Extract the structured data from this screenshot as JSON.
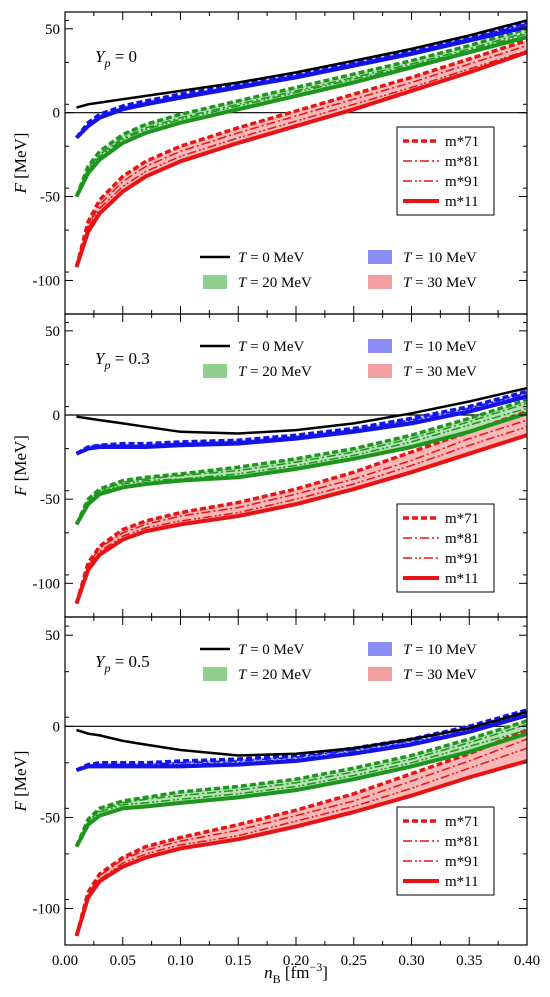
{
  "chart_data": {
    "type": "line",
    "xlabel_var": "n",
    "xlabel_sub": "B",
    "xlabel_unit_pre": " [fm",
    "xlabel_unit_exp": "−3",
    "xlabel_unit_post": "]",
    "ylabel_var": "F",
    "ylabel_unit": " [MeV]",
    "xlim": [
      0.0,
      0.4
    ],
    "xticks": [
      "0.00",
      "0.05",
      "0.10",
      "0.15",
      "0.20",
      "0.25",
      "0.30",
      "0.35",
      "0.40"
    ],
    "temp_legend": [
      {
        "name": "T = 0 MeV",
        "var": "T",
        "rest": " = 0 MeV",
        "color": "#000000",
        "kind": "line"
      },
      {
        "name": "T = 10 MeV",
        "var": "T",
        "rest": " = 10 MeV",
        "color": "#8c8cf5",
        "kind": "patch"
      },
      {
        "name": "T = 20 MeV",
        "var": "T",
        "rest": " = 20 MeV",
        "color": "#8fd08f",
        "kind": "patch"
      },
      {
        "name": "T = 30 MeV",
        "var": "T",
        "rest": " = 30 MeV",
        "color": "#f4a0a0",
        "kind": "patch"
      }
    ],
    "mass_legend": [
      {
        "name": "m*71",
        "dash": "6,3",
        "width": 3.5
      },
      {
        "name": "m*81",
        "dash": "9,3,2,3",
        "width": 1.5
      },
      {
        "name": "m*91",
        "dash": "9,3,2,2,2,3",
        "width": 1.5
      },
      {
        "name": "m*11",
        "dash": "",
        "width": 4
      }
    ],
    "colors": {
      "T0": "#000000",
      "T10": "#1414e6",
      "T20": "#1e961e",
      "T30": "#e61414"
    },
    "panels": [
      {
        "label_var": "Y",
        "label_sub": "p",
        "label_val": " = 0",
        "ylim": [
          -120,
          60
        ],
        "yticks": [
          "50",
          "0",
          "-50",
          "-100"
        ],
        "ytick_values": [
          50,
          0,
          -50,
          -100
        ],
        "x": [
          0.01,
          0.02,
          0.03,
          0.05,
          0.07,
          0.1,
          0.15,
          0.2,
          0.25,
          0.3,
          0.35,
          0.4
        ],
        "T0": [
          3,
          5,
          6,
          8,
          10,
          13,
          18,
          24,
          31,
          38,
          46,
          55
        ],
        "T10": {
          "m71": [
            -15,
            -6,
            -1,
            4,
            7,
            11,
            17,
            23,
            30,
            37,
            45,
            54
          ],
          "m81": [
            -15,
            -7,
            -2,
            3,
            6,
            10,
            16,
            22,
            29,
            36,
            44,
            53
          ],
          "m91": [
            -15,
            -7,
            -2,
            3,
            6,
            10,
            16,
            22,
            29,
            36,
            44,
            52
          ],
          "m11": [
            -15,
            -8,
            -3,
            2,
            5,
            9,
            15,
            21,
            28,
            35,
            43,
            51
          ]
        },
        "T20": {
          "m71": [
            -50,
            -32,
            -23,
            -13,
            -7,
            -1,
            7,
            15,
            23,
            31,
            40,
            50
          ],
          "m81": [
            -50,
            -33,
            -25,
            -15,
            -9,
            -3,
            5,
            13,
            21,
            29,
            38,
            48
          ],
          "m91": [
            -50,
            -34,
            -26,
            -16,
            -10,
            -4,
            4,
            12,
            20,
            28,
            37,
            47
          ],
          "m11": [
            -50,
            -36,
            -28,
            -18,
            -12,
            -6,
            2,
            10,
            18,
            27,
            36,
            45
          ]
        },
        "T30": {
          "m71": [
            -92,
            -65,
            -52,
            -38,
            -29,
            -20,
            -9,
            1,
            11,
            21,
            32,
            43
          ],
          "m81": [
            -92,
            -67,
            -55,
            -41,
            -32,
            -23,
            -12,
            -2,
            8,
            18,
            29,
            40
          ],
          "m91": [
            -92,
            -69,
            -57,
            -44,
            -35,
            -26,
            -15,
            -5,
            5,
            15,
            26,
            37
          ],
          "m11": [
            -92,
            -71,
            -60,
            -47,
            -38,
            -29,
            -18,
            -8,
            2,
            13,
            24,
            36
          ]
        },
        "temp_legend_pos": "bottom-right",
        "mass_legend_pos": "top-right"
      },
      {
        "label_var": "Y",
        "label_sub": "p",
        "label_val": " = 0.3",
        "ylim": [
          -120,
          60
        ],
        "yticks": [
          "50",
          "0",
          "-50",
          "-100"
        ],
        "ytick_values": [
          50,
          0,
          -50,
          -100
        ],
        "x": [
          0.01,
          0.02,
          0.03,
          0.05,
          0.07,
          0.1,
          0.15,
          0.2,
          0.25,
          0.3,
          0.35,
          0.4
        ],
        "T0": [
          -1,
          -2,
          -3,
          -5,
          -7,
          -10,
          -11,
          -9,
          -5,
          1,
          8,
          16
        ],
        "T10": {
          "m71": [
            -23,
            -19,
            -18,
            -17,
            -17,
            -16,
            -15,
            -12,
            -8,
            -2,
            5,
            14
          ],
          "m81": [
            -23,
            -19,
            -18,
            -18,
            -18,
            -17,
            -16,
            -13,
            -9,
            -3,
            4,
            13
          ],
          "m91": [
            -23,
            -19,
            -18,
            -18,
            -18,
            -17,
            -16,
            -13,
            -9,
            -4,
            3,
            12
          ],
          "m11": [
            -23,
            -20,
            -19,
            -19,
            -19,
            -18,
            -17,
            -14,
            -10,
            -5,
            2,
            11
          ]
        },
        "T20": {
          "m71": [
            -65,
            -50,
            -44,
            -39,
            -37,
            -35,
            -31,
            -26,
            -20,
            -12,
            -2,
            9
          ],
          "m81": [
            -65,
            -51,
            -45,
            -40,
            -38,
            -36,
            -33,
            -28,
            -22,
            -14,
            -4,
            7
          ],
          "m91": [
            -65,
            -52,
            -46,
            -41,
            -39,
            -38,
            -35,
            -30,
            -24,
            -16,
            -6,
            4
          ],
          "m11": [
            -65,
            -53,
            -47,
            -43,
            -41,
            -39,
            -37,
            -32,
            -26,
            -19,
            -10,
            1
          ]
        },
        "T30": {
          "m71": [
            -112,
            -88,
            -78,
            -68,
            -63,
            -58,
            -52,
            -44,
            -34,
            -22,
            -10,
            2
          ],
          "m81": [
            -112,
            -89,
            -79,
            -70,
            -65,
            -60,
            -55,
            -47,
            -38,
            -27,
            -14,
            -3
          ],
          "m91": [
            -112,
            -90,
            -81,
            -72,
            -67,
            -63,
            -58,
            -50,
            -41,
            -30,
            -18,
            -7
          ],
          "m11": [
            -112,
            -92,
            -83,
            -74,
            -69,
            -65,
            -60,
            -53,
            -44,
            -34,
            -23,
            -12
          ]
        },
        "temp_legend_pos": "top-right",
        "mass_legend_pos": "bottom-right"
      },
      {
        "label_var": "Y",
        "label_sub": "p",
        "label_val": " = 0.5",
        "ylim": [
          -120,
          60
        ],
        "yticks": [
          "50",
          "0",
          "-50",
          "-100"
        ],
        "ytick_values": [
          50,
          0,
          -50,
          -100
        ],
        "x": [
          0.01,
          0.02,
          0.03,
          0.05,
          0.07,
          0.1,
          0.15,
          0.2,
          0.25,
          0.3,
          0.35,
          0.4
        ],
        "T0": [
          -2,
          -4,
          -5,
          -8,
          -10,
          -13,
          -16,
          -15,
          -12,
          -7,
          -1,
          8
        ],
        "T10": {
          "m71": [
            -24,
            -21,
            -20,
            -20,
            -20,
            -19,
            -18,
            -16,
            -12,
            -7,
            0,
            9
          ],
          "m81": [
            -24,
            -21,
            -21,
            -21,
            -21,
            -20,
            -19,
            -17,
            -13,
            -8,
            -1,
            8
          ],
          "m91": [
            -24,
            -22,
            -21,
            -21,
            -21,
            -21,
            -20,
            -18,
            -14,
            -9,
            -2,
            7
          ],
          "m11": [
            -24,
            -22,
            -22,
            -22,
            -22,
            -22,
            -21,
            -19,
            -15,
            -10,
            -3,
            6
          ]
        },
        "T20": {
          "m71": [
            -66,
            -51,
            -45,
            -41,
            -39,
            -36,
            -33,
            -29,
            -23,
            -16,
            -7,
            3
          ],
          "m81": [
            -66,
            -52,
            -46,
            -42,
            -40,
            -38,
            -35,
            -31,
            -25,
            -18,
            -9,
            1
          ],
          "m91": [
            -66,
            -53,
            -47,
            -43,
            -42,
            -40,
            -37,
            -33,
            -27,
            -20,
            -11,
            -2
          ],
          "m11": [
            -66,
            -54,
            -49,
            -45,
            -44,
            -42,
            -39,
            -35,
            -29,
            -22,
            -14,
            -4
          ]
        },
        "T30": {
          "m71": [
            -115,
            -91,
            -81,
            -72,
            -66,
            -61,
            -54,
            -46,
            -37,
            -26,
            -15,
            -2
          ],
          "m81": [
            -115,
            -92,
            -82,
            -73,
            -68,
            -63,
            -57,
            -49,
            -41,
            -30,
            -19,
            -7
          ],
          "m91": [
            -115,
            -93,
            -84,
            -75,
            -70,
            -65,
            -60,
            -52,
            -44,
            -34,
            -23,
            -12
          ],
          "m11": [
            -115,
            -94,
            -85,
            -77,
            -72,
            -67,
            -62,
            -55,
            -47,
            -38,
            -28,
            -19
          ]
        },
        "temp_legend_pos": "top-right",
        "mass_legend_pos": "bottom-right"
      }
    ]
  }
}
